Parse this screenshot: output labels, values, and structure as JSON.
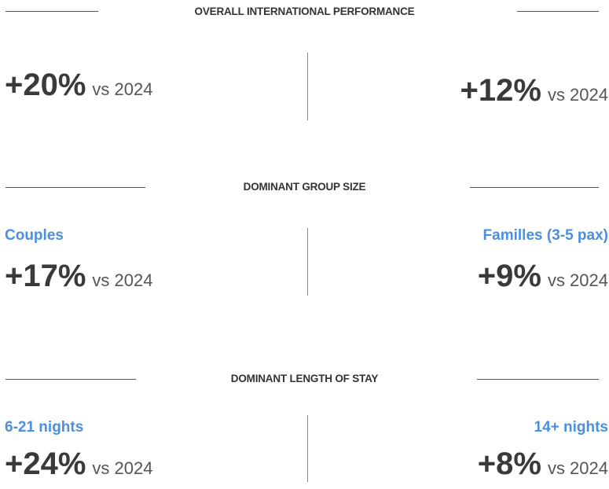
{
  "sections": [
    {
      "title": "OVERALL INTERNATIONAL PERFORMANCE",
      "left": {
        "value": "+20%",
        "comparison": "vs 2024"
      },
      "right": {
        "value": "+12%",
        "comparison": "vs 2024"
      }
    },
    {
      "title": "DOMINANT GROUP SIZE",
      "left": {
        "label": "Couples",
        "value": "+17%",
        "comparison": "vs 2024"
      },
      "right": {
        "label": "Familles (3-5 pax)",
        "value": "+9%",
        "comparison": "vs 2024"
      }
    },
    {
      "title": "DOMINANT LENGTH OF STAY",
      "left": {
        "label": "6-21 nights",
        "value": "+24%",
        "comparison": "vs 2024"
      },
      "right": {
        "label": "14+ nights",
        "value": "+8%",
        "comparison": "vs 2024"
      }
    }
  ]
}
